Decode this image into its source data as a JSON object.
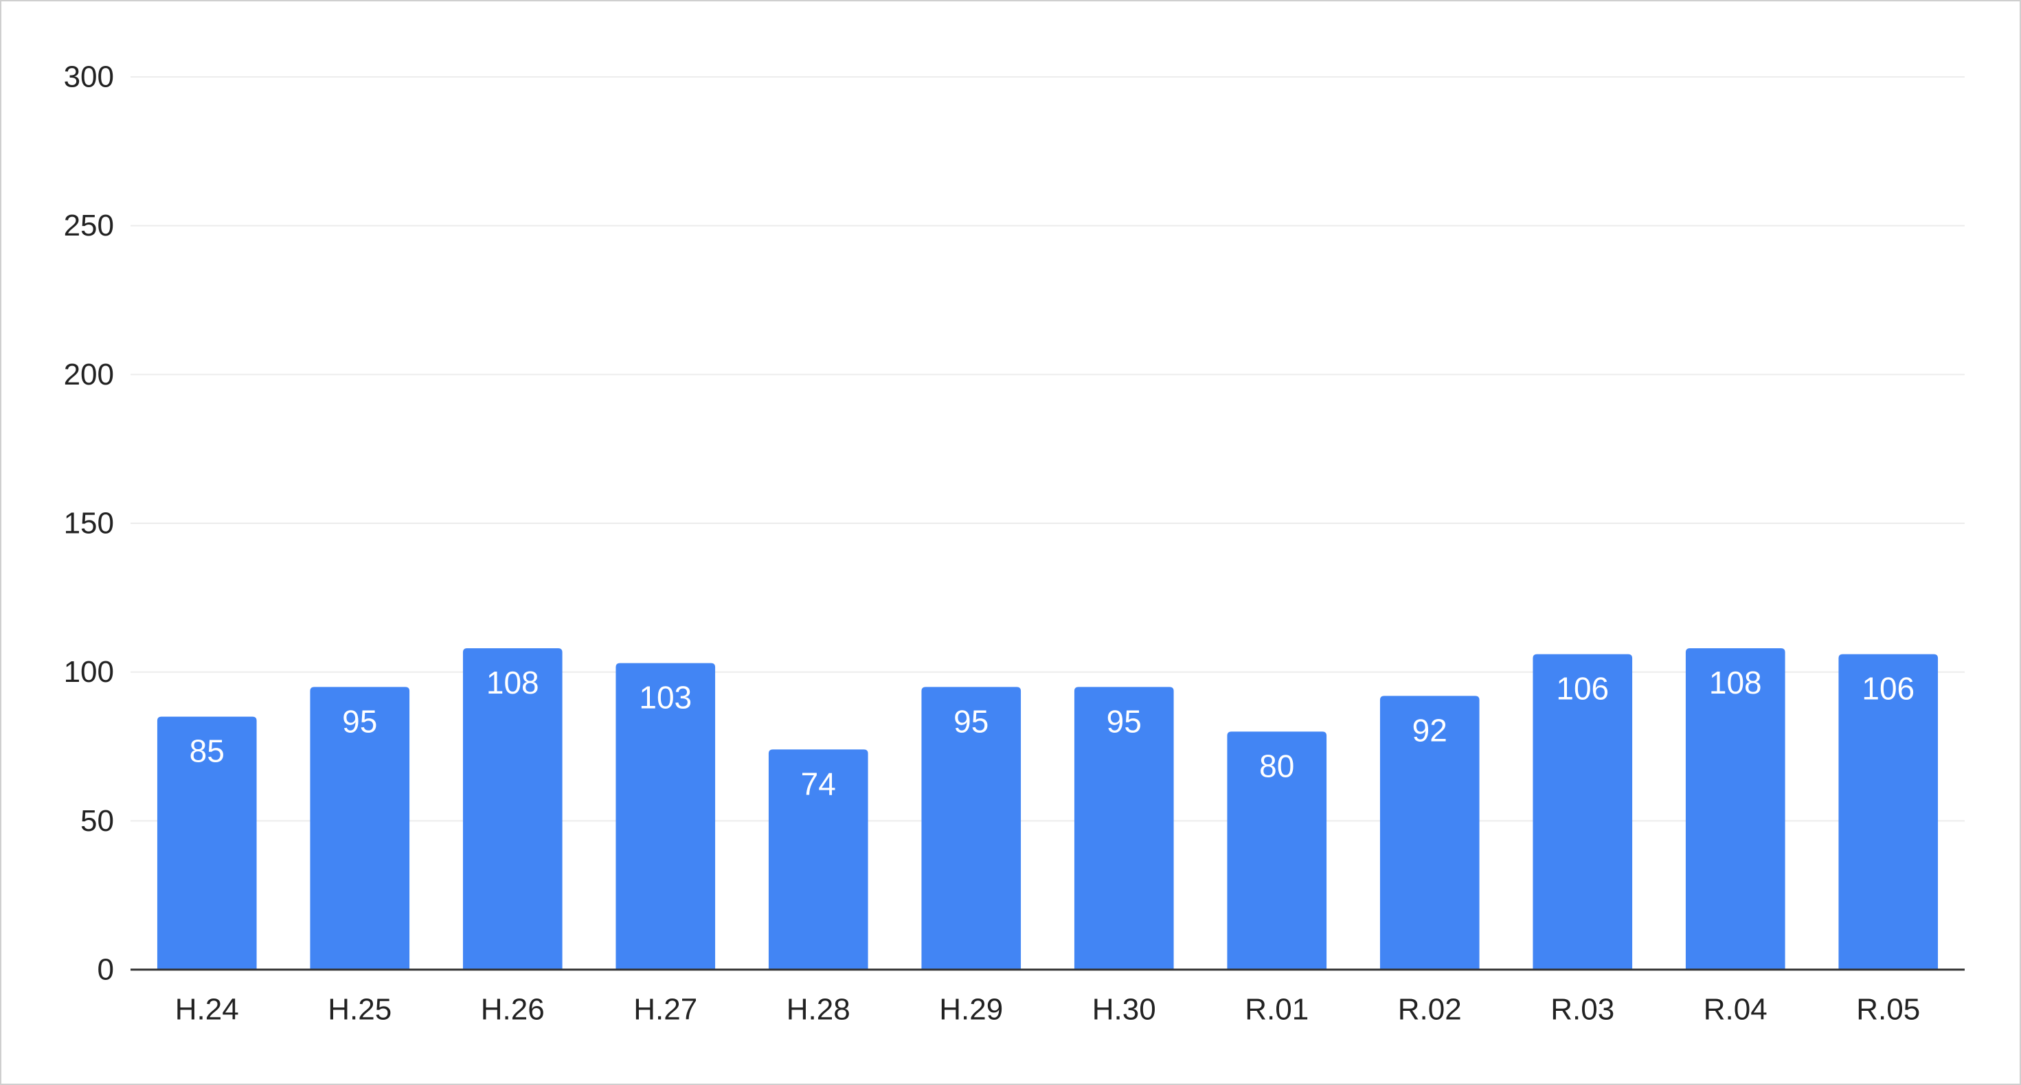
{
  "chart_data": {
    "type": "bar",
    "title": "",
    "xlabel": "",
    "ylabel": "",
    "categories": [
      "H.24",
      "H.25",
      "H.26",
      "H.27",
      "H.28",
      "H.29",
      "H.30",
      "R.01",
      "R.02",
      "R.03",
      "R.04",
      "R.05"
    ],
    "values": [
      85,
      95,
      108,
      103,
      74,
      95,
      95,
      80,
      92,
      106,
      108,
      106
    ],
    "data_labels": [
      "85",
      "95",
      "108",
      "103",
      "74",
      "95",
      "95",
      "80",
      "92",
      "106",
      "108",
      "106"
    ],
    "ylim": [
      0,
      300
    ],
    "yticks": [
      0,
      50,
      100,
      150,
      200,
      250,
      300
    ],
    "ytick_labels": [
      "0",
      "50",
      "100",
      "150",
      "200",
      "250",
      "300"
    ],
    "grid": true,
    "legend": "none",
    "bar_color": "#4285f4",
    "label_color": "#ffffff",
    "grid_color": "#ececec",
    "axis_color": "#333333"
  }
}
